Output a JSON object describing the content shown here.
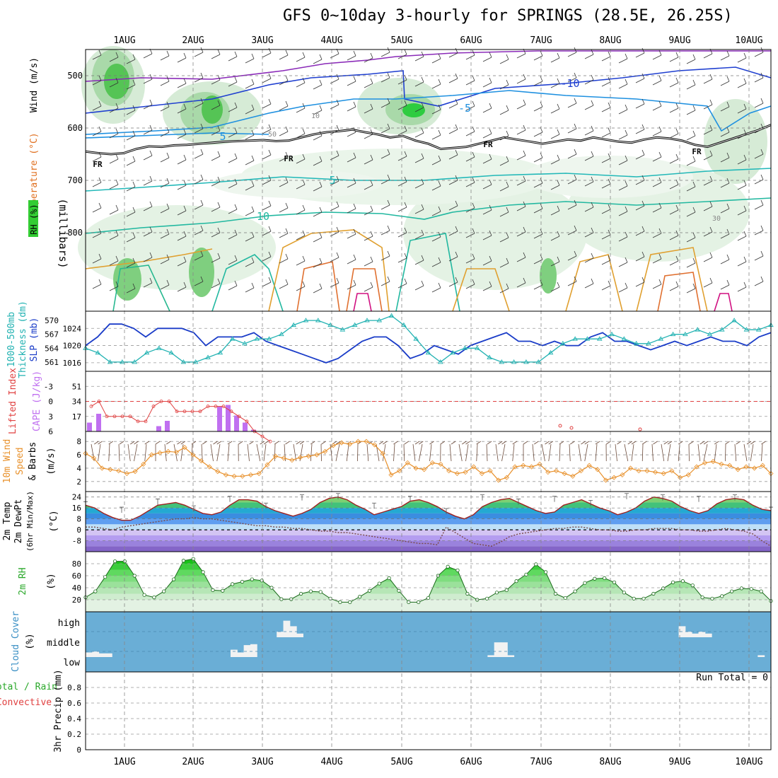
{
  "title": "GFS 0~10day 3-hourly for SPRINGS (28.5E, 26.25S)",
  "days": [
    "1AUG",
    "2AUG",
    "3AUG",
    "4AUG",
    "5AUG",
    "6AUG",
    "7AUG",
    "8AUG",
    "9AUG",
    "10AUG"
  ],
  "run_total": "Run Total = 0",
  "labels": {
    "upper": {
      "wind": "Wind (m/s)",
      "temp": "Temperature (°C)",
      "rh": "RH (%)",
      "mb": "(millibars)"
    },
    "thick": {
      "a": "1000-500mb",
      "b": "Thickness (dm)",
      "c": "SLP (mb)"
    },
    "cape": {
      "a": "Lifted Index",
      "b": "CAPE (J/kg)"
    },
    "wind10": {
      "a": "10m Wind",
      "b": "Speed",
      "c": "& Barbs",
      "d": "(m/s)"
    },
    "temp2m": {
      "a": "2m Temp",
      "b": "2m DewPt",
      "c": "(6hr Min/Max)",
      "d": "(°C)"
    },
    "rh2m": {
      "a": "2m RH",
      "b": "(%)"
    },
    "cloud": {
      "a": "Cloud Cover",
      "b": "(%)",
      "high": "high",
      "middle": "middle",
      "low": "low"
    },
    "precip": {
      "a": "Total / Rain",
      "b": "Convective",
      "c": "3hr Precip (mm)"
    }
  },
  "contour_labels": {
    "fr": "FR",
    "m10": "-10",
    "m5": "-5",
    "p5": "5",
    "p10": "10",
    "rh10": "10",
    "rh30": "30",
    "rh50": "50"
  },
  "colors": {
    "rh_green": "#33cc33",
    "slp": "#1a3cc8",
    "thick": "#22b2b2",
    "cape": "#c070f0",
    "li": "#e04040",
    "wind": "#e8902a",
    "rh2m": "#2aa82a",
    "cloud": "#6aaed6"
  },
  "chart_data": [
    {
      "type": "contour",
      "title": "Upper air",
      "ylabel": "(millibars)",
      "yticks": [
        500,
        600,
        700,
        800
      ],
      "ylim": [
        450,
        950
      ],
      "freezing_level_mb": [
        645,
        648,
        650,
        648,
        640,
        635,
        636,
        633,
        632,
        630,
        628,
        626,
        625,
        624,
        623,
        625,
        624,
        618,
        612,
        608,
        606,
        603,
        608,
        612,
        618,
        615,
        624,
        630,
        640,
        638,
        636,
        630,
        624,
        618,
        622,
        626,
        630,
        626,
        622,
        624,
        618,
        622,
        626,
        628,
        622,
        618,
        620,
        624,
        632,
        636,
        628,
        620,
        612,
        604,
        594
      ]
    },
    {
      "type": "line",
      "title": "Thickness / SLP",
      "series": [
        {
          "name": "SLP (mb)",
          "yticks": [
            1016,
            1020,
            1024
          ],
          "values": [
            1020,
            1022,
            1025,
            1025,
            1024,
            1022,
            1024,
            1024,
            1024,
            1023,
            1020,
            1022,
            1022,
            1022,
            1023,
            1021,
            1020,
            1019,
            1018,
            1017,
            1016,
            1017,
            1019,
            1021,
            1022,
            1022,
            1020,
            1017,
            1018,
            1020,
            1019,
            1018,
            1020,
            1021,
            1022,
            1023,
            1021,
            1021,
            1020,
            1021,
            1020,
            1020,
            1022,
            1023,
            1021,
            1021,
            1020,
            1019,
            1020,
            1021,
            1020,
            1021,
            1022,
            1021,
            1021,
            1020,
            1022,
            1023
          ]
        },
        {
          "name": "1000-500mb Thickness (dm)",
          "yticks": [
            561,
            564,
            567,
            570
          ],
          "values": [
            564,
            563,
            561,
            561,
            561,
            563,
            564,
            563,
            561,
            561,
            562,
            563,
            566,
            565,
            566,
            566,
            567,
            569,
            570,
            570,
            569,
            568,
            569,
            570,
            570,
            571,
            569,
            566,
            563,
            561,
            563,
            564,
            564,
            562,
            561,
            561,
            561,
            561,
            563,
            565,
            566,
            566,
            566,
            567,
            566,
            565,
            565,
            566,
            567,
            567,
            568,
            567,
            568,
            570,
            568,
            568,
            569
          ]
        }
      ]
    },
    {
      "type": "bar+line",
      "title": "CAPE / Lifted Index",
      "series": [
        {
          "name": "CAPE (J/kg)",
          "yticks": [
            17,
            34,
            51
          ],
          "values": [
            10,
            20,
            0,
            0,
            0,
            0,
            0,
            0,
            0,
            0,
            6,
            12,
            0,
            0,
            0,
            0,
            0,
            0,
            0,
            28,
            30,
            18,
            10,
            2
          ]
        },
        {
          "name": "Lifted Index",
          "yticks": [
            -3,
            0,
            3,
            6
          ],
          "values": [
            1,
            0,
            3,
            3,
            3,
            3,
            4,
            4,
            1,
            0,
            0,
            2,
            2,
            2,
            2,
            1,
            1,
            1,
            2,
            3,
            4,
            6,
            7,
            8
          ]
        }
      ]
    },
    {
      "type": "line",
      "title": "10m Wind Speed & Barbs",
      "ylabel": "(m/s)",
      "yticks": [
        2,
        4,
        6,
        8
      ],
      "series": [
        {
          "name": "10m Wind Speed",
          "values": [
            6.2,
            5.5,
            4,
            3.8,
            3.6,
            3.2,
            3.5,
            4.6,
            6,
            6.3,
            6.5,
            6.4,
            7.1,
            6,
            5.1,
            4.2,
            3.5,
            3,
            2.8,
            2.8,
            3,
            3.2,
            4.5,
            5.8,
            5.5,
            5.2,
            5.6,
            5.8,
            6,
            6.5,
            7.4,
            7.8,
            7.6,
            8,
            8,
            7.5,
            6.2,
            3,
            3.6,
            4.8,
            4,
            3.8,
            4.8,
            4.6,
            3.6,
            3.2,
            3.4,
            4.2,
            3.2,
            3.6,
            2.2,
            2.6,
            4.2,
            4.4,
            4.2,
            4.6,
            3.4,
            3.6,
            3.2,
            2.8,
            3.6,
            4.4,
            3.8,
            2.2,
            2.6,
            3,
            4,
            3.6,
            3.6,
            3.4,
            3.2,
            3.6,
            2.6,
            3,
            4.2,
            4.8,
            5,
            4.6,
            4.4,
            3.8,
            4.2,
            4,
            4.4,
            3.2
          ]
        }
      ]
    },
    {
      "type": "area",
      "title": "2m Temp / DewPt",
      "ylabel": "(°C)",
      "yticks": [
        -8,
        0,
        8,
        16,
        24
      ],
      "series": [
        {
          "name": "2m Temp",
          "values": [
            18,
            16,
            12,
            9,
            7,
            7,
            10,
            14,
            18,
            19,
            20,
            18,
            15,
            12,
            11,
            13,
            18,
            22,
            22,
            21,
            17,
            14,
            12,
            10,
            12,
            15,
            20,
            23,
            24,
            22,
            18,
            15,
            11,
            13,
            15,
            17,
            21,
            22,
            20,
            17,
            13,
            10,
            8,
            11,
            17,
            20,
            22,
            23,
            20,
            17,
            14,
            12,
            13,
            18,
            20,
            22,
            19,
            16,
            14,
            11,
            13,
            16,
            21,
            24,
            23,
            21,
            17,
            14,
            12,
            14,
            19,
            22,
            23,
            22,
            18,
            15,
            14
          ]
        },
        {
          "name": "2m DewPt",
          "values": [
            2,
            2,
            1,
            0,
            2,
            3,
            4,
            5,
            6,
            7,
            8,
            8,
            9,
            8,
            8,
            7,
            6,
            5,
            4,
            3,
            3,
            2,
            2,
            1,
            1,
            0,
            -1,
            -1,
            -2,
            -2,
            -3,
            -4,
            -5,
            -6,
            -7,
            -8,
            -9,
            -10,
            -10,
            -11,
            2,
            -2,
            -6,
            -10,
            -11,
            -12,
            -9,
            -5,
            -3,
            -2,
            -1,
            0,
            1,
            1,
            2,
            2,
            1,
            0,
            0,
            -1,
            -1,
            0,
            0,
            1,
            1,
            1,
            0,
            0,
            -1,
            -1,
            0,
            1,
            0,
            -1,
            -3,
            -8,
            -12
          ]
        }
      ]
    },
    {
      "type": "area",
      "title": "2m RH",
      "ylabel": "(%)",
      "yticks": [
        20,
        40,
        60,
        80
      ],
      "series": [
        {
          "name": "2m RH",
          "values": [
            24,
            34,
            58,
            84,
            84,
            60,
            28,
            24,
            34,
            54,
            85,
            88,
            66,
            36,
            35,
            46,
            50,
            54,
            52,
            40,
            21,
            21,
            30,
            34,
            33,
            22,
            16,
            16,
            25,
            35,
            47,
            56,
            35,
            16,
            16,
            23,
            60,
            75,
            69,
            30,
            20,
            22,
            32,
            36,
            51,
            62,
            79,
            66,
            30,
            23,
            34,
            48,
            55,
            56,
            49,
            32,
            22,
            22,
            30,
            39,
            49,
            51,
            44,
            24,
            22,
            26,
            34,
            39,
            38,
            34,
            18
          ]
        }
      ]
    },
    {
      "type": "heatmap",
      "title": "Cloud Cover",
      "ylabel": "(%)",
      "levels": [
        "high",
        "middle",
        "low"
      ],
      "series": [
        {
          "name": "high",
          "values": [
            0,
            0,
            0,
            0,
            0,
            0,
            0,
            0,
            0,
            0,
            0,
            0,
            0,
            0,
            0,
            0,
            0,
            0,
            0,
            0,
            0,
            0,
            0,
            0,
            0,
            0,
            0,
            0,
            0,
            30,
            90,
            60,
            20,
            0,
            0,
            0,
            0,
            0,
            0,
            0,
            0,
            0,
            0,
            0,
            0,
            0,
            0,
            0,
            0,
            0,
            0,
            0,
            0,
            0,
            0,
            0,
            0,
            0,
            0,
            0,
            0,
            0,
            0,
            0,
            0,
            0,
            0,
            0,
            0,
            0,
            0,
            0,
            0,
            0,
            0,
            0,
            0,
            0,
            0,
            0,
            0,
            0,
            0,
            0,
            0,
            0,
            0,
            0,
            0,
            0,
            60,
            30,
            20,
            30,
            20,
            0,
            0,
            0,
            0,
            0,
            0,
            0,
            0,
            0,
            0
          ]
        },
        {
          "name": "middle",
          "values": [
            25,
            30,
            20,
            20,
            0,
            0,
            0,
            0,
            0,
            0,
            0,
            0,
            0,
            0,
            0,
            0,
            0,
            0,
            0,
            0,
            0,
            0,
            40,
            25,
            65,
            70,
            0,
            0,
            0,
            0,
            0,
            0,
            0,
            0,
            0,
            0,
            0,
            0,
            0,
            0,
            0,
            0,
            0,
            0,
            0,
            0,
            0,
            0,
            0,
            0,
            0,
            0,
            0,
            0,
            0,
            0,
            0,
            0,
            0,
            0,
            0,
            10,
            80,
            80,
            10,
            0,
            0,
            0,
            0,
            0,
            0,
            0,
            0,
            0,
            0,
            0,
            0,
            0,
            0,
            0,
            0,
            0,
            0,
            0,
            0,
            0,
            0,
            0,
            0,
            0,
            0,
            0,
            0,
            0,
            0,
            0,
            0,
            0,
            0,
            0,
            0,
            0,
            10,
            0,
            0
          ]
        },
        {
          "name": "low",
          "values": [
            0
          ]
        }
      ]
    },
    {
      "type": "bar",
      "title": "3hr Precip",
      "ylabel": "3hr Precip (mm)",
      "yticks": [
        0,
        0.2,
        0.4,
        0.6,
        0.8
      ],
      "ylim": [
        0,
        1
      ],
      "values": [
        0
      ]
    }
  ]
}
